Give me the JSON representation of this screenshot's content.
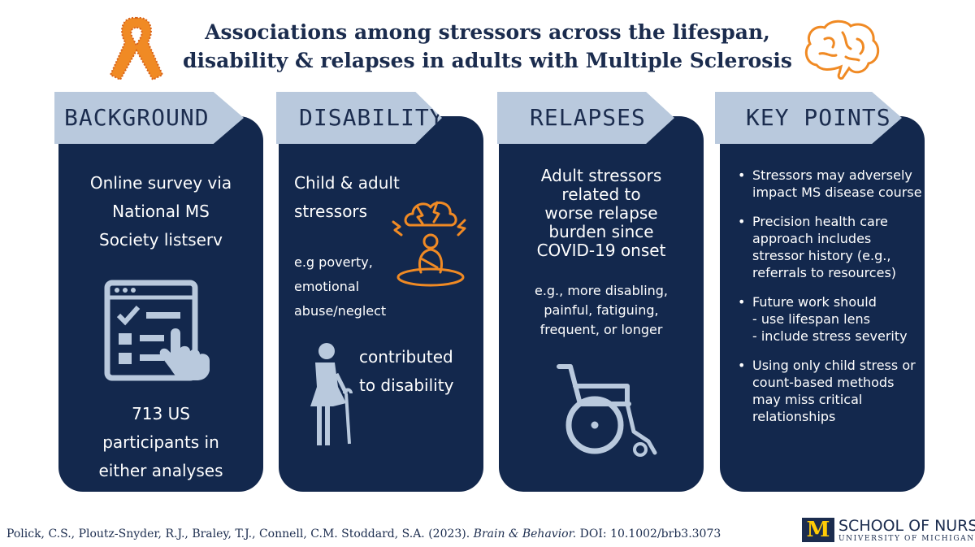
{
  "header": {
    "title_line1": "Associations among stressors across the lifespan,",
    "title_line2": "disability & relapses in adults with Multiple Sclerosis"
  },
  "icons": [
    "awareness-ribbon-icon",
    "brain-icon",
    "survey-tablet-icon",
    "stressed-person-icon",
    "elderly-woman-cane-icon",
    "wheelchair-icon"
  ],
  "colors": {
    "navy": "#13284d",
    "tab": "#b9c9dd",
    "orange": "#f08a24",
    "title": "#1b2c4e"
  },
  "panels": {
    "background": {
      "heading": "BACKGROUND",
      "line1": "Online survey via",
      "line2": "National MS",
      "line3": "Society listserv",
      "count1": "713 US",
      "count2": "participants in",
      "count3": "either analyses"
    },
    "disability": {
      "heading": "DISABILITY",
      "line1": "Child & adult",
      "line2": "stressors",
      "ex1": "e.g poverty,",
      "ex2": "emotional",
      "ex3": "abuse/neglect",
      "res1": "contributed",
      "res2": "to disability"
    },
    "relapses": {
      "heading": "RELAPSES",
      "line1": "Adult stressors",
      "line2": "related to",
      "line3": "worse relapse",
      "line4": "burden since",
      "line5": "COVID-19 onset",
      "ex1": "e.g., more disabling,",
      "ex2": "painful, fatiguing,",
      "ex3": "frequent, or longer"
    },
    "key_points": {
      "heading": "KEY POINTS",
      "p1": "Stressors may adversely impact MS disease course",
      "p2": "Precision health care approach includes stressor history (e.g., referrals to resources)",
      "p3": "Future work should",
      "p3a": " - use lifespan lens",
      "p3b": " - include stress severity",
      "p4": "Using only child stress or count-based methods may miss critical relationships"
    }
  },
  "footer": {
    "citation": "Polick, C.S., Ploutz-Snyder, R.J., Braley, T.J., Connell, C.M. Stoddard, S.A. (2023). ",
    "journal": "Brain & Behavior.",
    "doi": " DOI: 10.1002/brb3.3073",
    "logo_mark": "M",
    "logo_title": "SCHOOL OF NURSING",
    "logo_sub": "UNIVERSITY OF MICHIGAN"
  }
}
